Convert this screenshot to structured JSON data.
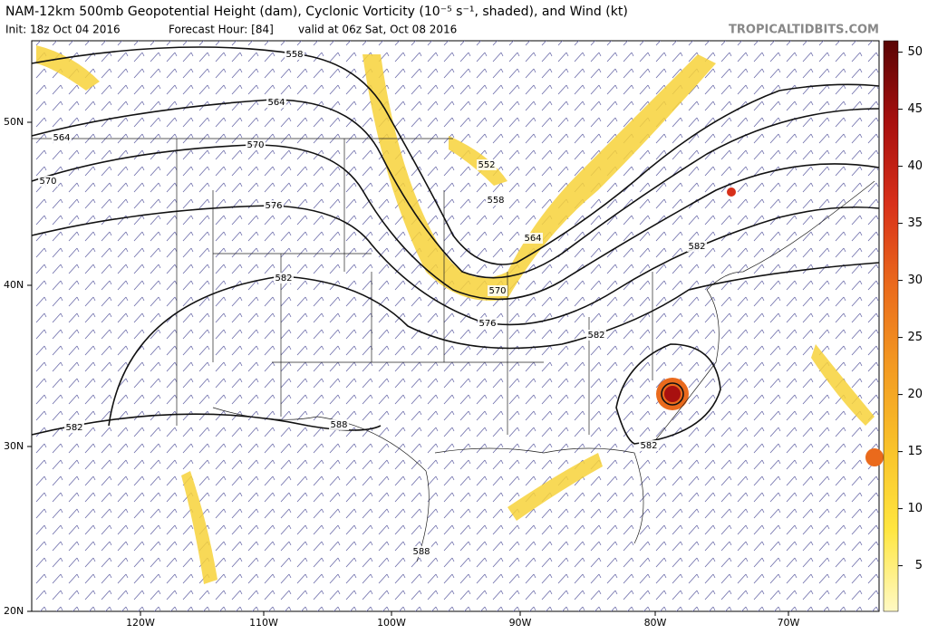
{
  "header": {
    "title": "NAM-12km 500mb Geopotential Height (dam), Cyclonic Vorticity (10⁻⁵ s⁻¹, shaded), and Wind (kt)",
    "init": "Init: 18z Oct 04 2016",
    "forecast_hour": "Forecast Hour: [84]",
    "valid": "valid at 06z Sat, Oct 08 2016",
    "source": "TROPICALTIDBITS.COM"
  },
  "map": {
    "lat_labels": [
      "50N",
      "40N",
      "30N",
      "20N"
    ],
    "lon_labels": [
      "120W",
      "110W",
      "100W",
      "90W",
      "80W",
      "70W"
    ],
    "contour_labels": [
      558,
      564,
      564,
      570,
      570,
      576,
      582,
      552,
      558,
      564,
      570,
      576,
      582,
      582,
      582,
      588,
      582,
      588
    ]
  },
  "colorbar": {
    "range": [
      1,
      51
    ],
    "ticks": [
      5,
      10,
      15,
      20,
      25,
      30,
      35,
      40,
      45,
      50
    ],
    "colors": [
      "#fff9c4",
      "#ffe640",
      "#f9c22a",
      "#f39a22",
      "#ea6a1c",
      "#d8301a",
      "#a8100f",
      "#5a0505"
    ]
  }
}
